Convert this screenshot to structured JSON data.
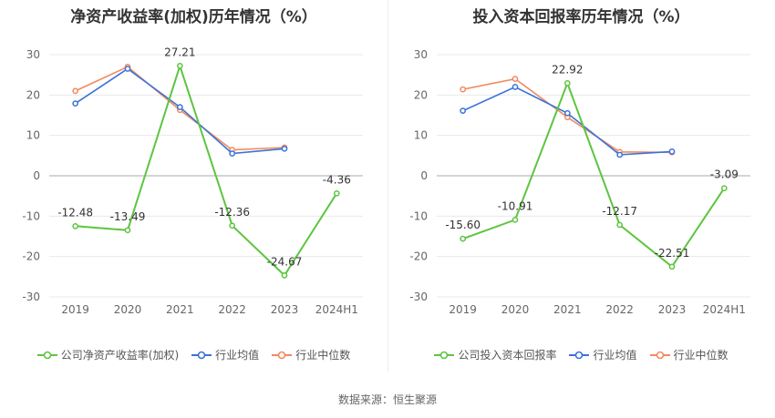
{
  "source_label": "数据来源：恒生聚源",
  "colors": {
    "company": "#5dc540",
    "avg": "#3a73d8",
    "median": "#f2895f",
    "grid": "#e8e8e8",
    "axis": "#aaaaaa",
    "tick": "#666666",
    "label": "#333333"
  },
  "chart_data": [
    {
      "type": "line",
      "title": "净资产收益率(加权)历年情况（%）",
      "categories": [
        "2019",
        "2020",
        "2021",
        "2022",
        "2023",
        "2024H1"
      ],
      "ylim": [
        -30,
        30
      ],
      "yticks": [
        30,
        20,
        10,
        0,
        -10,
        -20,
        -30
      ],
      "grid": true,
      "legend_position": "bottom",
      "series": [
        {
          "name": "公司净资产收益率(加权)",
          "color": "#5dc540",
          "values": [
            -12.48,
            -13.49,
            27.21,
            -12.36,
            -24.67,
            -4.36
          ],
          "labels": [
            "-12.48",
            "-13.49",
            "27.21",
            "-12.36",
            "-24.67",
            "-4.36"
          ]
        },
        {
          "name": "行业均值",
          "color": "#3a73d8",
          "values": [
            17.9,
            26.5,
            17.0,
            5.5,
            6.7,
            null
          ]
        },
        {
          "name": "行业中位数",
          "color": "#f2895f",
          "values": [
            21.0,
            27.0,
            16.3,
            6.4,
            7.0,
            null
          ]
        }
      ]
    },
    {
      "type": "line",
      "title": "投入资本回报率历年情况（%）",
      "categories": [
        "2019",
        "2020",
        "2021",
        "2022",
        "2023",
        "2024H1"
      ],
      "ylim": [
        -30,
        30
      ],
      "yticks": [
        30,
        20,
        10,
        0,
        -10,
        -20,
        -30
      ],
      "grid": true,
      "legend_position": "bottom",
      "series": [
        {
          "name": "公司投入资本回报率",
          "color": "#5dc540",
          "values": [
            -15.6,
            -10.91,
            22.92,
            -12.17,
            -22.51,
            -3.09
          ],
          "labels": [
            "-15.60",
            "-10.91",
            "22.92",
            "-12.17",
            "-22.51",
            "-3.09"
          ]
        },
        {
          "name": "行业均值",
          "color": "#3a73d8",
          "values": [
            16.1,
            22.0,
            15.5,
            5.2,
            6.0,
            null
          ]
        },
        {
          "name": "行业中位数",
          "color": "#f2895f",
          "values": [
            21.4,
            24.0,
            14.5,
            5.9,
            5.8,
            null
          ]
        }
      ]
    }
  ]
}
